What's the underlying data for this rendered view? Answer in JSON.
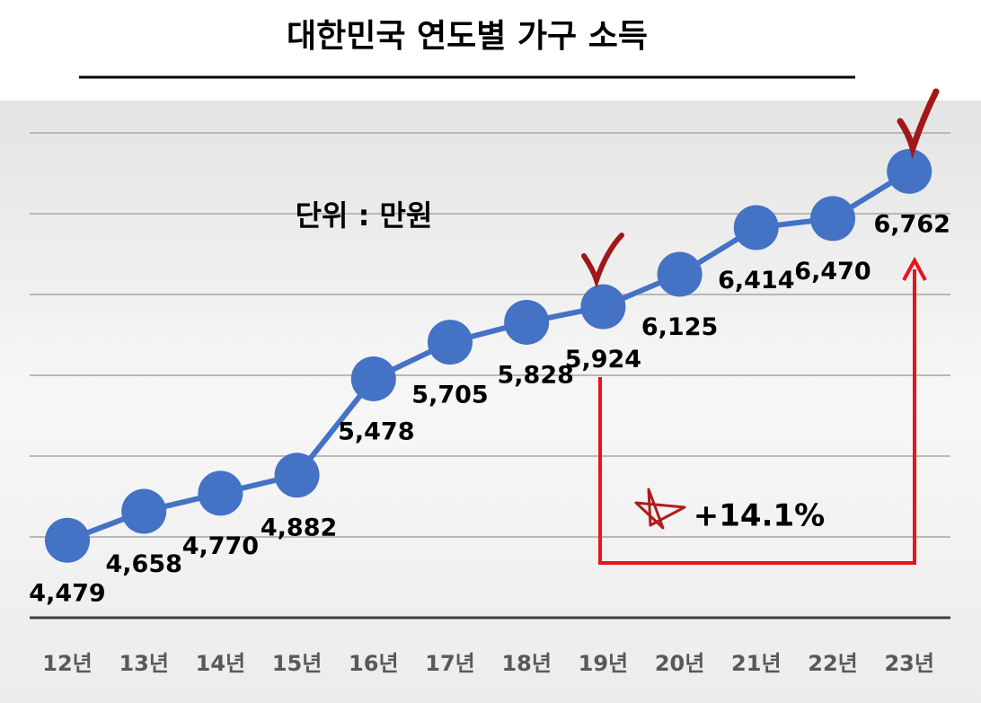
{
  "chart_data": {
    "type": "line",
    "title": "대한민국 연도별 가구 소득",
    "unit_note": "단위 : 만원",
    "change_label": "+14.1%",
    "categories": [
      "12년",
      "13년",
      "14년",
      "15년",
      "16년",
      "17년",
      "18년",
      "19년",
      "20년",
      "21년",
      "22년",
      "23년"
    ],
    "values": [
      4479,
      4658,
      4770,
      4882,
      5478,
      5705,
      5828,
      5924,
      6125,
      6414,
      6470,
      6762
    ],
    "value_labels": [
      "4,479",
      "4,658",
      "4,770",
      "4,882",
      "5,478",
      "5,705",
      "5,828",
      "5,924",
      "6,125",
      "6,414",
      "6,470",
      "6,762"
    ],
    "color": "#4472c4",
    "ylim": [
      4000,
      7000
    ],
    "yticks": [
      4500,
      5000,
      5500,
      6000,
      6500,
      7000
    ],
    "grid": true
  }
}
